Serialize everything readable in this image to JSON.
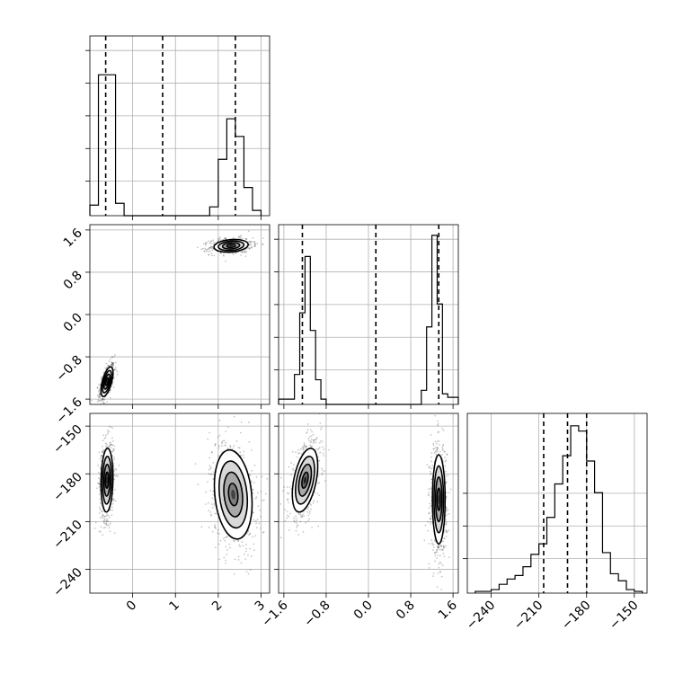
{
  "chart_data": {
    "type": "corner",
    "parameters": 3,
    "axes": [
      {
        "range": [
          -1.0,
          3.2
        ],
        "ticks": [
          0,
          1,
          2,
          3
        ],
        "tick_labels": [
          "0",
          "1",
          "2",
          "3"
        ]
      },
      {
        "range": [
          -1.7,
          1.7
        ],
        "ticks": [
          -1.6,
          -0.8,
          0.0,
          0.8,
          1.6
        ],
        "tick_labels": [
          "−1.6",
          "−0.8",
          "0.0",
          "0.8",
          "1.6"
        ]
      },
      {
        "range": [
          -255,
          -142
        ],
        "ticks": [
          -240,
          -210,
          -180,
          -150
        ],
        "tick_labels": [
          "−240",
          "−210",
          "−180",
          "−150"
        ]
      }
    ],
    "grid": true,
    "histograms": [
      {
        "param": 0,
        "bin_edges": [
          -1.0,
          -0.8,
          -0.6,
          -0.4,
          -0.2,
          1.8,
          2.0,
          2.2,
          2.4,
          2.6,
          2.8,
          3.0
        ],
        "counts": [
          0.06,
          0.8,
          0.8,
          0.07,
          0.0,
          0.05,
          0.32,
          0.55,
          0.45,
          0.16,
          0.03
        ],
        "quantiles": [
          -0.63,
          0.7,
          2.4
        ]
      },
      {
        "param": 1,
        "bin_edges": [
          -1.7,
          -1.5,
          -1.4,
          -1.3,
          -1.2,
          -1.1,
          -1.0,
          -0.9,
          -0.8,
          -0.7,
          0.8,
          1.0,
          1.1,
          1.2,
          1.3,
          1.4,
          1.5,
          1.6,
          1.7
        ],
        "counts": [
          0.03,
          0.03,
          0.17,
          0.52,
          0.84,
          0.42,
          0.14,
          0.03,
          0.0,
          0.0,
          0.0,
          0.08,
          0.44,
          0.96,
          0.57,
          0.06,
          0.04,
          0.04
        ],
        "quantiles": [
          -1.25,
          0.14,
          1.33
        ]
      },
      {
        "param": 2,
        "bin_edges": [
          -250,
          -245,
          -240,
          -235,
          -230,
          -225,
          -220,
          -215,
          -210,
          -205,
          -200,
          -195,
          -190,
          -185,
          -180,
          -175,
          -170,
          -165,
          -160,
          -155,
          -150,
          -145
        ],
        "counts": [
          0.01,
          0.01,
          0.02,
          0.05,
          0.08,
          0.1,
          0.15,
          0.22,
          0.28,
          0.43,
          0.62,
          0.78,
          0.95,
          0.92,
          0.75,
          0.57,
          0.23,
          0.11,
          0.07,
          0.02,
          0.01
        ],
        "quantiles": [
          -207,
          -192,
          -180
        ]
      }
    ],
    "density_panels": [
      {
        "x_param": 0,
        "y_param": 1,
        "clusters": [
          {
            "cx": -0.6,
            "cy": -1.27,
            "sx": 0.07,
            "sy": 0.14,
            "rho": 0.6,
            "count": 520,
            "peak": 0.9
          },
          {
            "cx": 2.3,
            "cy": 1.3,
            "sx": 0.2,
            "sy": 0.06,
            "rho": 0.2,
            "count": 560,
            "peak": 0.7
          }
        ]
      },
      {
        "x_param": 0,
        "y_param": 2,
        "clusters": [
          {
            "cx": -0.6,
            "cy": -184,
            "sx": 0.07,
            "sy": 10,
            "rho": 0.1,
            "count": 620,
            "peak": 0.85
          },
          {
            "cx": 2.35,
            "cy": -193,
            "sx": 0.22,
            "sy": 14,
            "rho": -0.2,
            "count": 720,
            "peak": 0.55
          }
        ]
      },
      {
        "x_param": 1,
        "y_param": 2,
        "clusters": [
          {
            "cx": -1.2,
            "cy": -184,
            "sx": 0.12,
            "sy": 10,
            "rho": 0.45,
            "count": 620,
            "peak": 0.85
          },
          {
            "cx": 1.33,
            "cy": -196,
            "sx": 0.06,
            "sy": 14,
            "rho": 0.0,
            "count": 720,
            "peak": 0.65
          }
        ]
      }
    ]
  }
}
